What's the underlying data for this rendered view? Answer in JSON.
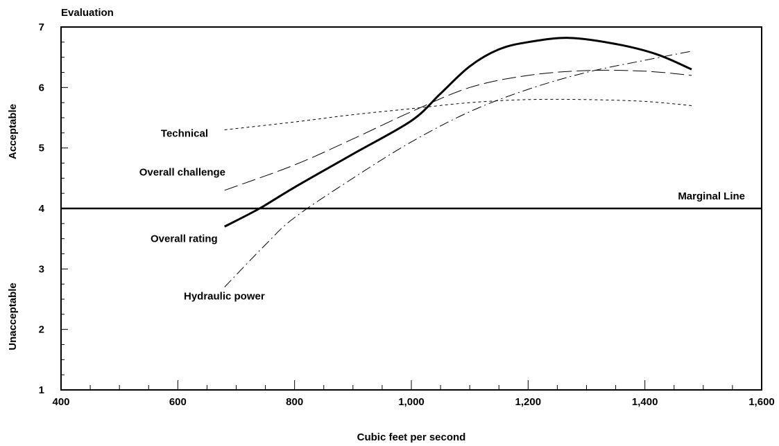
{
  "chart_data": {
    "type": "line",
    "title": "",
    "xlabel": "Cubic feet per second",
    "ylabel": "Evaluation",
    "xlim": [
      400,
      1600
    ],
    "ylim": [
      1,
      7
    ],
    "x_ticks": [
      400,
      600,
      800,
      1000,
      1200,
      1400,
      1600
    ],
    "x_tick_labels": [
      "400",
      "600",
      "800",
      "1,000",
      "1,200",
      "1,400",
      "1,600"
    ],
    "y_ticks": [
      1,
      2,
      3,
      4,
      5,
      6,
      7
    ],
    "y_tick_labels": [
      "1",
      "2",
      "3",
      "4",
      "5",
      "6",
      "7"
    ],
    "y_region_labels": {
      "upper": "Acceptable",
      "lower": "Unacceptable"
    },
    "reference_line": {
      "name": "Marginal Line",
      "y": 4
    },
    "grid": false,
    "series": [
      {
        "name": "Overall rating",
        "style": "solid-thick",
        "x": [
          680,
          740,
          800,
          900,
          1000,
          1050,
          1100,
          1150,
          1200,
          1270,
          1350,
          1420,
          1480
        ],
        "y": [
          3.7,
          4.0,
          4.35,
          4.9,
          5.45,
          5.9,
          6.35,
          6.63,
          6.75,
          6.82,
          6.72,
          6.55,
          6.3
        ]
      },
      {
        "name": "Overall challenge",
        "style": "long-dash",
        "x": [
          680,
          800,
          900,
          1000,
          1100,
          1200,
          1300,
          1400,
          1480
        ],
        "y": [
          4.3,
          4.72,
          5.15,
          5.6,
          6.0,
          6.2,
          6.28,
          6.27,
          6.2
        ]
      },
      {
        "name": "Technical",
        "style": "short-dash",
        "x": [
          680,
          800,
          900,
          1000,
          1100,
          1200,
          1300,
          1400,
          1480
        ],
        "y": [
          5.3,
          5.43,
          5.55,
          5.65,
          5.75,
          5.8,
          5.8,
          5.77,
          5.7
        ]
      },
      {
        "name": "Hydraulic power",
        "style": "dash-dot",
        "x": [
          680,
          750,
          800,
          900,
          1000,
          1100,
          1200,
          1300,
          1400,
          1480
        ],
        "y": [
          2.7,
          3.4,
          3.85,
          4.5,
          5.1,
          5.6,
          5.97,
          6.25,
          6.45,
          6.6
        ]
      }
    ]
  }
}
